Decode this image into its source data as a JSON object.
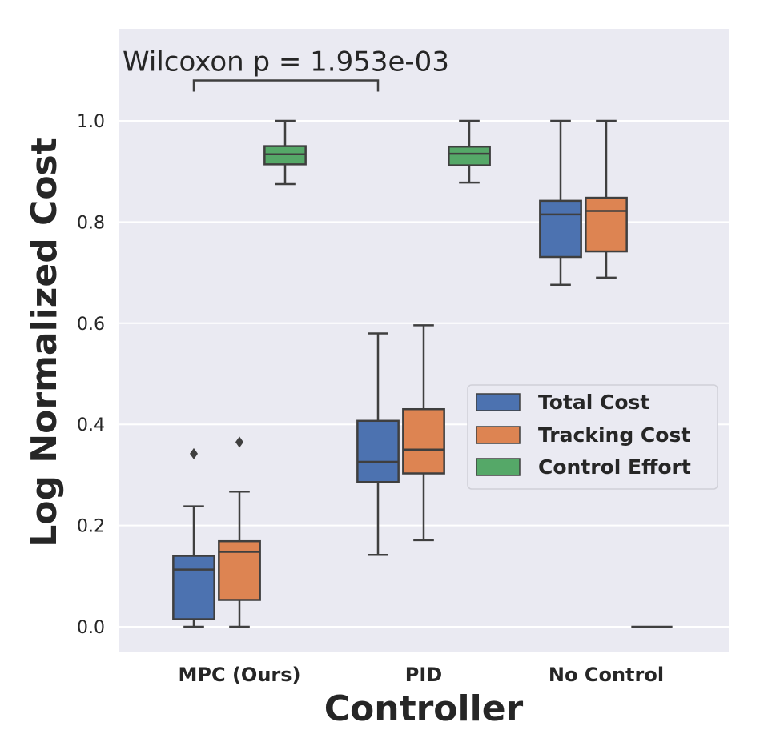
{
  "chart_data": {
    "type": "box",
    "categories": [
      "MPC (Ours)",
      "PID",
      "No Control"
    ],
    "xlabel": "Controller",
    "ylabel": "Log Normalized Cost",
    "ylim": [
      -0.05,
      1.18
    ],
    "yticks": [
      0.0,
      0.2,
      0.4,
      0.6,
      0.8,
      1.0
    ],
    "ytick_labels": [
      "0.0",
      "0.2",
      "0.4",
      "0.6",
      "0.8",
      "1.0"
    ],
    "grid": true,
    "legend_position": "center-right",
    "series": [
      {
        "name": "Total Cost",
        "color": "#4c72b0",
        "boxes": [
          {
            "whisker_low": 0.0,
            "q1": 0.015,
            "median": 0.113,
            "q3": 0.14,
            "whisker_high": 0.238,
            "outliers": [
              0.342
            ]
          },
          {
            "whisker_low": 0.142,
            "q1": 0.286,
            "median": 0.326,
            "q3": 0.407,
            "whisker_high": 0.58,
            "outliers": []
          },
          {
            "whisker_low": 0.676,
            "q1": 0.731,
            "median": 0.815,
            "q3": 0.842,
            "whisker_high": 1.0,
            "outliers": []
          }
        ]
      },
      {
        "name": "Tracking Cost",
        "color": "#dd8452",
        "boxes": [
          {
            "whisker_low": 0.0,
            "q1": 0.053,
            "median": 0.148,
            "q3": 0.169,
            "whisker_high": 0.267,
            "outliers": [
              0.365
            ]
          },
          {
            "whisker_low": 0.171,
            "q1": 0.303,
            "median": 0.35,
            "q3": 0.43,
            "whisker_high": 0.596,
            "outliers": []
          },
          {
            "whisker_low": 0.69,
            "q1": 0.742,
            "median": 0.822,
            "q3": 0.848,
            "whisker_high": 1.0,
            "outliers": []
          }
        ]
      },
      {
        "name": "Control Effort",
        "color": "#55a868",
        "boxes": [
          {
            "whisker_low": 0.875,
            "q1": 0.914,
            "median": 0.934,
            "q3": 0.95,
            "whisker_high": 1.0,
            "outliers": []
          },
          {
            "whisker_low": 0.878,
            "q1": 0.912,
            "median": 0.935,
            "q3": 0.949,
            "whisker_high": 1.0,
            "outliers": []
          },
          {
            "whisker_low": 0.0,
            "q1": 0.0,
            "median": 0.0,
            "q3": 0.0,
            "whisker_high": 0.0,
            "outliers": []
          }
        ]
      }
    ],
    "annotation": {
      "text": "Wilcoxon p = 1.953e-03",
      "from_category": "MPC (Ours)",
      "to_category": "PID",
      "y": 1.08
    },
    "colors": {
      "plot_background": "#eaeaf2",
      "grid": "#ffffff",
      "box_edge": "#3f3f3f"
    }
  }
}
